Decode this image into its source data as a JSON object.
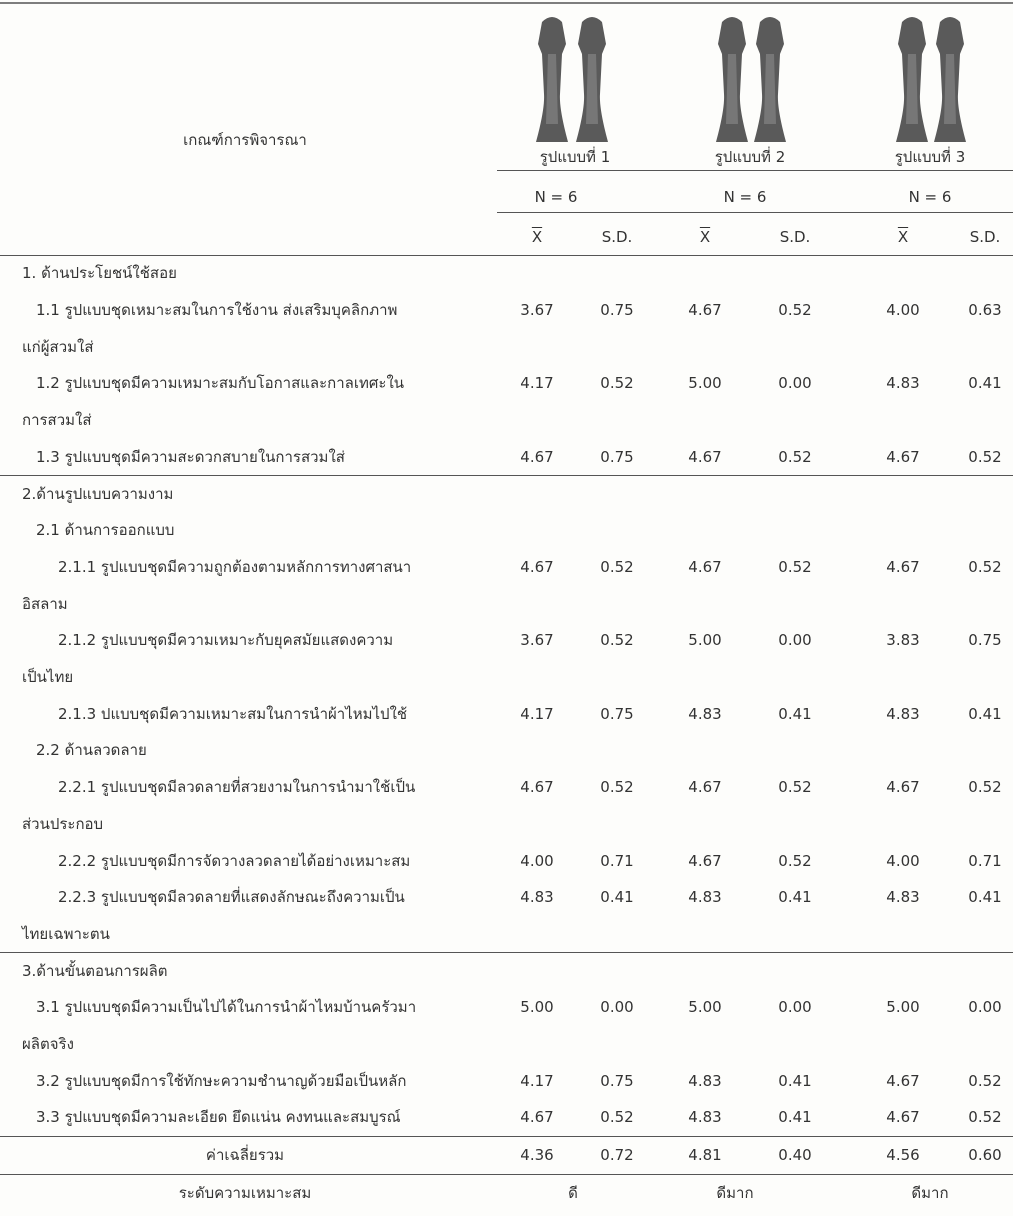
{
  "header": {
    "criteria": "เกณฑ์การพิจารณา",
    "designs": [
      "รูปแบบที่ 1",
      "รูปแบบที่ 2",
      "รูปแบบที่ 3"
    ],
    "n": [
      "N = 6",
      "N = 6",
      "N = 6"
    ],
    "stats": [
      "X",
      "S.D.",
      "X",
      "S.D.",
      "X",
      "S.D."
    ]
  },
  "sections": [
    {
      "rows": [
        {
          "lines": [
            "1. ด้านประโยชน์ใช้สอย"
          ]
        },
        {
          "lines": [
            "1.1 รูปแบบชุดเหมาะสมในการใช้งาน ส่งเสริมบุคลิกภาพ",
            "แก่ผู้สวมใส่"
          ],
          "values": [
            "3.67",
            "0.75",
            "4.67",
            "0.52",
            "4.00",
            "0.63"
          ]
        },
        {
          "lines": [
            "1.2 รูปแบบชุดมีความเหมาะสมกับโอกาสและกาลเทศะใน",
            "การสวมใส่"
          ],
          "values": [
            "4.17",
            "0.52",
            "5.00",
            "0.00",
            "4.83",
            "0.41"
          ]
        },
        {
          "lines": [
            "1.3 รูปแบบชุดมีความสะดวกสบายในการสวมใส่"
          ],
          "values": [
            "4.67",
            "0.75",
            "4.67",
            "0.52",
            "4.67",
            "0.52"
          ]
        }
      ]
    },
    {
      "rows": [
        {
          "lines": [
            "2.ด้านรูปแบบความงาม"
          ]
        },
        {
          "lines": [
            "2.1 ด้านการออกแบบ"
          ]
        },
        {
          "lines": [
            "2.1.1 รูปแบบชุดมีความถูกต้องตามหลักการทางศาสนา",
            "อิสลาม"
          ],
          "values": [
            "4.67",
            "0.52",
            "4.67",
            "0.52",
            "4.67",
            "0.52"
          ]
        },
        {
          "lines": [
            "2.1.2 รูปแบบชุดมีความเหมาะกับยุคสมัยแสดงความ",
            "เป็นไทย"
          ],
          "values": [
            "3.67",
            "0.52",
            "5.00",
            "0.00",
            "3.83",
            "0.75"
          ]
        },
        {
          "lines": [
            "2.1.3 ปแบบชุดมีความเหมาะสมในการนำผ้าไหมไปใช้"
          ],
          "values": [
            "4.17",
            "0.75",
            "4.83",
            "0.41",
            "4.83",
            "0.41"
          ]
        },
        {
          "lines": [
            "2.2 ด้านลวดลาย"
          ]
        },
        {
          "lines": [
            "2.2.1 รูปแบบชุดมีลวดลายที่สวยงามในการนำมาใช้เป็น",
            "ส่วนประกอบ"
          ],
          "values": [
            "4.67",
            "0.52",
            "4.67",
            "0.52",
            "4.67",
            "0.52"
          ]
        },
        {
          "lines": [
            "2.2.2 รูปแบบชุดมีการจัดวางลวดลายได้อย่างเหมาะสม"
          ],
          "values": [
            "4.00",
            "0.71",
            "4.67",
            "0.52",
            "4.00",
            "0.71"
          ]
        },
        {
          "lines": [
            "2.2.3 รูปแบบชุดมีลวดลายที่แสดงลักษณะถึงความเป็น",
            "ไทยเฉพาะตน"
          ],
          "values": [
            "4.83",
            "0.41",
            "4.83",
            "0.41",
            "4.83",
            "0.41"
          ]
        }
      ]
    },
    {
      "rows": [
        {
          "lines": [
            "3.ด้านขั้นตอนการผลิต"
          ]
        },
        {
          "lines": [
            "3.1 รูปแบบชุดมีความเป็นไปได้ในการนำผ้าไหมบ้านครัวมา",
            "ผลิตจริง"
          ],
          "values": [
            "5.00",
            "0.00",
            "5.00",
            "0.00",
            "5.00",
            "0.00"
          ]
        },
        {
          "lines": [
            "3.2 รูปแบบชุดมีการใช้ทักษะความชำนาญด้วยมือเป็นหลัก"
          ],
          "values": [
            "4.17",
            "0.75",
            "4.83",
            "0.41",
            "4.67",
            "0.52"
          ]
        },
        {
          "lines": [
            "3.3 รูปแบบชุดมีความละเอียด ยึดแน่น คงทนและสมบูรณ์"
          ],
          "values": [
            "4.67",
            "0.52",
            "4.83",
            "0.41",
            "4.67",
            "0.52"
          ]
        }
      ]
    }
  ],
  "mean": {
    "label": "ค่าเฉลี่ยรวม",
    "values": [
      "4.36",
      "0.72",
      "4.81",
      "0.40",
      "4.56",
      "0.60"
    ]
  },
  "level": {
    "label": "ระดับความเหมาะสม",
    "values": [
      "ดี",
      "ดีมาก",
      "ดีมาก"
    ]
  }
}
